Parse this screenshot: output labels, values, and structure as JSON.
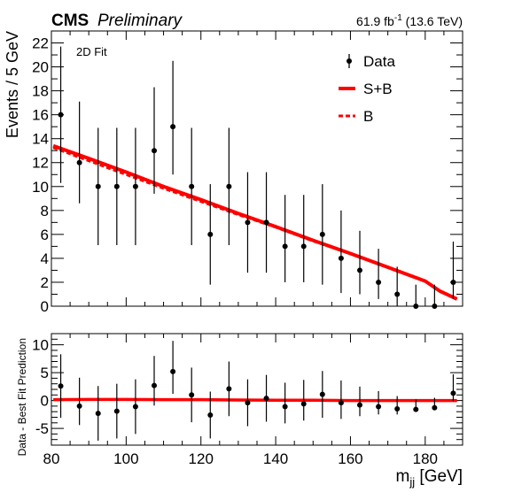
{
  "header": {
    "experiment": "CMS",
    "status": "Preliminary",
    "lumi": "61.9 fb",
    "lumi_sup": "-1",
    "energy": " (13.6 TeV)"
  },
  "annotation": "2D Fit",
  "legend": {
    "data": "Data",
    "sb": "S+B",
    "b": "B"
  },
  "colors": {
    "fit": "#ff0000",
    "data": "#000000"
  },
  "chart_data": [
    {
      "type": "scatter",
      "ylabel": "Events / 5 GeV",
      "ylim": [
        0,
        23
      ],
      "xlim": [
        80,
        190
      ],
      "yticks": [
        0,
        2,
        4,
        6,
        8,
        10,
        12,
        14,
        16,
        18,
        20,
        22
      ],
      "data": {
        "x": [
          82.5,
          87.5,
          92.5,
          97.5,
          102.5,
          107.5,
          112.5,
          117.5,
          122.5,
          127.5,
          132.5,
          137.5,
          142.5,
          147.5,
          152.5,
          157.5,
          162.5,
          167.5,
          172.5,
          177.5,
          182.5,
          187.5
        ],
        "y": [
          16,
          12,
          10,
          10,
          10,
          13,
          15,
          10,
          6,
          10,
          7,
          7,
          5,
          5,
          6,
          4,
          3,
          2,
          1,
          0,
          0,
          2
        ],
        "err_low": [
          5.7,
          3.4,
          4.9,
          4.9,
          4.9,
          3.6,
          4.0,
          4.9,
          4.2,
          4.9,
          4.2,
          4.2,
          3.0,
          3.0,
          4.2,
          2.9,
          2.0,
          1.4,
          1.0,
          0.0,
          0.0,
          1.4
        ],
        "err_high": [
          5.7,
          5.1,
          4.9,
          4.9,
          4.9,
          5.3,
          5.5,
          4.9,
          4.2,
          4.9,
          4.2,
          4.2,
          4.3,
          4.3,
          4.2,
          4.0,
          3.3,
          2.8,
          2.3,
          1.8,
          1.8,
          3.4
        ]
      },
      "series": [
        {
          "name": "S+B",
          "x": [
            80.5,
            90,
            100,
            110,
            120,
            130,
            140,
            150,
            160,
            170,
            180,
            184,
            188.5
          ],
          "y": [
            13.4,
            12.35,
            11.2,
            10.0,
            8.9,
            7.75,
            6.65,
            5.5,
            4.4,
            3.25,
            2.1,
            1.25,
            0.6
          ]
        },
        {
          "name": "B",
          "x": [
            80.5,
            90,
            100,
            110,
            120,
            130,
            140,
            150,
            160,
            170,
            180,
            184,
            188.5
          ],
          "y": [
            13.25,
            12.15,
            11.0,
            9.85,
            8.75,
            7.65,
            6.6,
            5.45,
            4.4,
            3.25,
            2.1,
            1.25,
            0.6
          ]
        }
      ]
    },
    {
      "type": "scatter",
      "ylabel": "Data - Best Fit Prediction",
      "xlabel": "m",
      "xlabel_sub": "jj",
      "xlabel_unit": " [GeV]",
      "ylim": [
        -8,
        12
      ],
      "xlim": [
        80,
        190
      ],
      "yticks": [
        -5,
        0,
        5,
        10
      ],
      "xticks": [
        80,
        100,
        120,
        140,
        160,
        180
      ],
      "data": {
        "x": [
          82.5,
          87.5,
          92.5,
          97.5,
          102.5,
          107.5,
          112.5,
          117.5,
          122.5,
          127.5,
          132.5,
          137.5,
          142.5,
          147.5,
          152.5,
          157.5,
          162.5,
          167.5,
          172.5,
          177.5,
          182.5,
          187.5
        ],
        "y": [
          2.6,
          -1.0,
          -2.3,
          -1.9,
          -1.1,
          2.7,
          5.2,
          1.0,
          -2.6,
          2.1,
          -0.4,
          0.4,
          -1.1,
          -0.6,
          1.1,
          -0.4,
          -0.8,
          -1.1,
          -1.5,
          -1.6,
          -1.3,
          1.3
        ],
        "err_low": [
          5.7,
          3.4,
          4.9,
          4.9,
          4.9,
          3.6,
          4.0,
          4.9,
          4.2,
          4.9,
          4.2,
          4.2,
          3.0,
          3.0,
          4.2,
          2.9,
          2.0,
          1.4,
          1.0,
          0.0,
          0.0,
          1.4
        ],
        "err_high": [
          5.7,
          5.1,
          4.9,
          4.9,
          4.9,
          5.3,
          5.5,
          4.9,
          4.2,
          4.9,
          4.2,
          4.2,
          4.3,
          4.3,
          4.2,
          4.0,
          3.3,
          2.8,
          2.3,
          1.8,
          1.8,
          3.4
        ]
      },
      "series": [
        {
          "x": [
            80.5,
            90,
            100,
            110,
            120,
            130,
            140,
            150,
            160,
            170,
            180,
            188.5
          ],
          "y": [
            0.15,
            0.2,
            0.2,
            0.15,
            0.15,
            0.1,
            0.05,
            0.05,
            0.0,
            0.0,
            0.0,
            0.0
          ]
        }
      ]
    }
  ]
}
